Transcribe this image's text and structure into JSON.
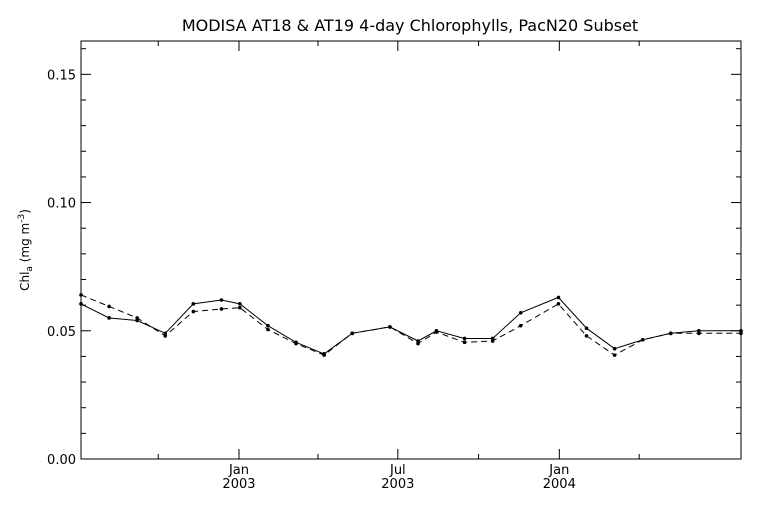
{
  "chart_data": {
    "type": "line",
    "title": "MODISA AT18 & AT19 4-day Chlorophylls, PacN20 Subset",
    "ylabel": {
      "prefix": "Chl",
      "sub": "a",
      "units_open": " (mg m",
      "units_sup": "-3",
      "units_close": ")"
    },
    "xlabel": "",
    "ylim": [
      0,
      0.163
    ],
    "xlim": [
      "2002-07-05",
      "2004-07-26"
    ],
    "y_ticks": [
      {
        "value": 0.0,
        "label": "0.00"
      },
      {
        "value": 0.05,
        "label": "0.05"
      },
      {
        "value": 0.1,
        "label": "0.10"
      },
      {
        "value": 0.15,
        "label": "0.15"
      }
    ],
    "x_ticks": [
      {
        "date": "2003-01-01",
        "month": "Jan",
        "year": "2003"
      },
      {
        "date": "2003-07-01",
        "month": "Jul",
        "year": "2003"
      },
      {
        "date": "2004-01-01",
        "month": "Jan",
        "year": "2004"
      }
    ],
    "series": [
      {
        "style": "solid",
        "points": [
          {
            "x": "2002-07-05",
            "y": 0.0605
          },
          {
            "x": "2002-08-06",
            "y": 0.055
          },
          {
            "x": "2002-09-07",
            "y": 0.054
          },
          {
            "x": "2002-10-09",
            "y": 0.049
          },
          {
            "x": "2002-11-10",
            "y": 0.0605
          },
          {
            "x": "2002-12-12",
            "y": 0.062
          },
          {
            "x": "2003-01-02",
            "y": 0.0605
          },
          {
            "x": "2003-02-03",
            "y": 0.052
          },
          {
            "x": "2003-03-07",
            "y": 0.0455
          },
          {
            "x": "2003-04-08",
            "y": 0.041
          },
          {
            "x": "2003-05-10",
            "y": 0.049
          },
          {
            "x": "2003-06-22",
            "y": 0.0515
          },
          {
            "x": "2003-07-24",
            "y": 0.046
          },
          {
            "x": "2003-08-14",
            "y": 0.05
          },
          {
            "x": "2003-09-15",
            "y": 0.047
          },
          {
            "x": "2003-10-17",
            "y": 0.047
          },
          {
            "x": "2003-11-18",
            "y": 0.057
          },
          {
            "x": "2003-12-31",
            "y": 0.063
          },
          {
            "x": "2004-02-01",
            "y": 0.051
          },
          {
            "x": "2004-03-04",
            "y": 0.043
          },
          {
            "x": "2004-04-05",
            "y": 0.0465
          },
          {
            "x": "2004-05-07",
            "y": 0.049
          },
          {
            "x": "2004-06-08",
            "y": 0.05
          },
          {
            "x": "2004-07-26",
            "y": 0.05
          }
        ]
      },
      {
        "style": "dashed",
        "points": [
          {
            "x": "2002-07-05",
            "y": 0.064
          },
          {
            "x": "2002-08-06",
            "y": 0.0595
          },
          {
            "x": "2002-09-07",
            "y": 0.055
          },
          {
            "x": "2002-10-09",
            "y": 0.048
          },
          {
            "x": "2002-11-10",
            "y": 0.0575
          },
          {
            "x": "2002-12-12",
            "y": 0.0585
          },
          {
            "x": "2003-01-02",
            "y": 0.059
          },
          {
            "x": "2003-02-03",
            "y": 0.0505
          },
          {
            "x": "2003-03-07",
            "y": 0.045
          },
          {
            "x": "2003-04-08",
            "y": 0.0405
          },
          {
            "x": "2003-05-10",
            "y": 0.049
          },
          {
            "x": "2003-06-22",
            "y": 0.0515
          },
          {
            "x": "2003-07-24",
            "y": 0.045
          },
          {
            "x": "2003-08-14",
            "y": 0.0495
          },
          {
            "x": "2003-09-15",
            "y": 0.0455
          },
          {
            "x": "2003-10-17",
            "y": 0.046
          },
          {
            "x": "2003-11-18",
            "y": 0.052
          },
          {
            "x": "2003-12-31",
            "y": 0.0605
          },
          {
            "x": "2004-02-01",
            "y": 0.048
          },
          {
            "x": "2004-03-04",
            "y": 0.0405
          },
          {
            "x": "2004-04-05",
            "y": 0.0465
          },
          {
            "x": "2004-05-07",
            "y": 0.049
          },
          {
            "x": "2004-06-08",
            "y": 0.049
          },
          {
            "x": "2004-07-26",
            "y": 0.049
          }
        ]
      }
    ],
    "grid": false,
    "colors": {
      "line": "#000000",
      "background": "#ffffff"
    }
  }
}
